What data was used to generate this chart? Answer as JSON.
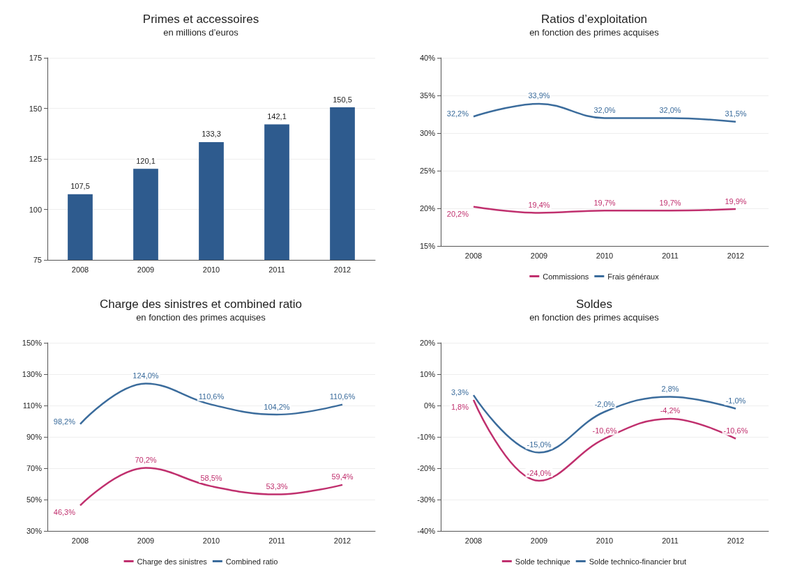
{
  "chart_data": [
    {
      "type": "bar",
      "title": "Primes et accessoires",
      "subtitle": "en millions d’euros",
      "categories": [
        "2008",
        "2009",
        "2010",
        "2011",
        "2012"
      ],
      "values": [
        107.5,
        120.1,
        133.3,
        142.1,
        150.5
      ],
      "value_labels": [
        "107,5",
        "120,1",
        "133,3",
        "142,1",
        "150,5"
      ],
      "color": "#2e5b8e",
      "ylim": [
        75,
        175
      ],
      "yticks": [
        75,
        100,
        125,
        150,
        175
      ],
      "grid": "y",
      "legend": false
    },
    {
      "type": "line",
      "title": "Ratios d’exploitation",
      "subtitle": "en fonction des primes acquises",
      "categories": [
        "2008",
        "2009",
        "2010",
        "2011",
        "2012"
      ],
      "series": [
        {
          "name": "Commissions",
          "color": "#c0306e",
          "values": [
            20.2,
            19.4,
            19.7,
            19.7,
            19.9
          ],
          "value_labels": [
            "20,2%",
            "19,4%",
            "19,7%",
            "19,7%",
            "19,9%"
          ]
        },
        {
          "name": "Frais généraux",
          "color": "#3b6c9c",
          "values": [
            32.2,
            33.9,
            32.0,
            32.0,
            31.5
          ],
          "value_labels": [
            "32,2%",
            "33,9%",
            "32,0%",
            "32,0%",
            "31,5%"
          ]
        }
      ],
      "ylim": [
        15,
        40
      ],
      "yticks": [
        {
          "value": 15,
          "label": "15%"
        },
        {
          "value": 20,
          "label": "20%"
        },
        {
          "value": 25,
          "label": "25%"
        },
        {
          "value": 30,
          "label": "30%"
        },
        {
          "value": 35,
          "label": "35%"
        },
        {
          "value": 40,
          "label": "40%"
        }
      ],
      "grid": "y",
      "legend": "bottom",
      "marker": "none",
      "line_style": "solid"
    },
    {
      "type": "line",
      "title": "Charge des sinistres et combined ratio",
      "subtitle": "en fonction des primes acquises",
      "categories": [
        "2008",
        "2009",
        "2010",
        "2011",
        "2012"
      ],
      "series": [
        {
          "name": "Charge des sinistres",
          "color": "#c0306e",
          "values": [
            46.3,
            70.2,
            58.5,
            53.3,
            59.4
          ],
          "value_labels": [
            "46,3%",
            "70,2%",
            "58,5%",
            "53,3%",
            "59,4%"
          ]
        },
        {
          "name": "Combined ratio",
          "color": "#3b6c9c",
          "values": [
            98.2,
            124.0,
            110.6,
            104.2,
            110.6
          ],
          "value_labels": [
            "98,2%",
            "124,0%",
            "110,6%",
            "104,2%",
            "110,6%"
          ]
        }
      ],
      "ylim": [
        30,
        150
      ],
      "yticks": [
        {
          "value": 30,
          "label": "30%"
        },
        {
          "value": 50,
          "label": "50%"
        },
        {
          "value": 70,
          "label": "70%"
        },
        {
          "value": 90,
          "label": "90%"
        },
        {
          "value": 110,
          "label": "110%"
        },
        {
          "value": 130,
          "label": "130%"
        },
        {
          "value": 150,
          "label": "150%"
        }
      ],
      "grid": "y",
      "legend": "bottom",
      "marker": "none",
      "line_style": "solid"
    },
    {
      "type": "line",
      "title": "Soldes",
      "subtitle": "en fonction des primes acquises",
      "categories": [
        "2008",
        "2009",
        "2010",
        "2011",
        "2012"
      ],
      "series": [
        {
          "name": "Solde technique",
          "color": "#c0306e",
          "values": [
            1.8,
            -24.0,
            -10.6,
            -4.2,
            -10.6
          ],
          "value_labels": [
            "1,8%",
            "-24,0%",
            "-10,6%",
            "-4,2%",
            "-10,6%"
          ]
        },
        {
          "name": "Solde technico-financier brut",
          "color": "#3b6c9c",
          "values": [
            3.3,
            -15.0,
            -2.0,
            2.8,
            -1.0
          ],
          "value_labels": [
            "3,3%",
            "-15,0%",
            "-2,0%",
            "2,8%",
            "-1,0%"
          ]
        }
      ],
      "ylim": [
        -40,
        20
      ],
      "yticks": [
        {
          "value": -40,
          "label": "-40%"
        },
        {
          "value": -30,
          "label": "-30%"
        },
        {
          "value": -20,
          "label": "-20%"
        },
        {
          "value": -10,
          "label": "-10%"
        },
        {
          "value": 0,
          "label": "0%"
        },
        {
          "value": 10,
          "label": "10%"
        },
        {
          "value": 20,
          "label": "20%"
        }
      ],
      "grid": "y",
      "legend": "bottom",
      "marker": "none",
      "line_style": "solid"
    }
  ]
}
